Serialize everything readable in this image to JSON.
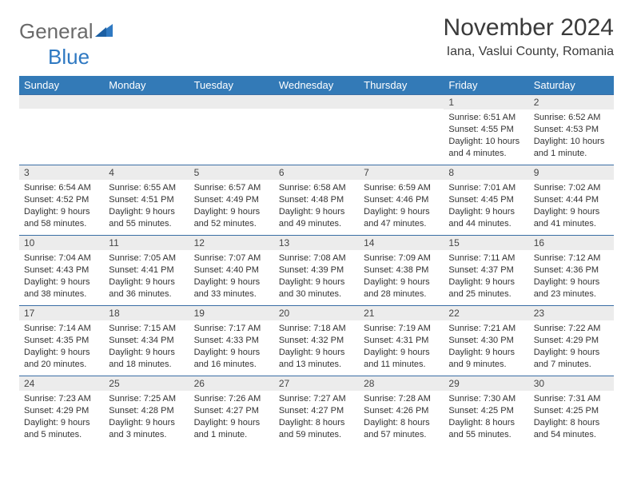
{
  "logo": {
    "text1": "General",
    "text2": "Blue"
  },
  "title": "November 2024",
  "location": "Iana, Vaslui County, Romania",
  "colors": {
    "header_bg": "#337ab7",
    "header_text": "#ffffff",
    "daynum_bg": "#ececec",
    "border": "#3a6ea5",
    "logo_accent": "#2f79c2"
  },
  "weekdays": [
    "Sunday",
    "Monday",
    "Tuesday",
    "Wednesday",
    "Thursday",
    "Friday",
    "Saturday"
  ],
  "weeks": [
    [
      null,
      null,
      null,
      null,
      null,
      {
        "n": "1",
        "sunrise": "6:51 AM",
        "sunset": "4:55 PM",
        "daylight": "10 hours and 4 minutes."
      },
      {
        "n": "2",
        "sunrise": "6:52 AM",
        "sunset": "4:53 PM",
        "daylight": "10 hours and 1 minute."
      }
    ],
    [
      {
        "n": "3",
        "sunrise": "6:54 AM",
        "sunset": "4:52 PM",
        "daylight": "9 hours and 58 minutes."
      },
      {
        "n": "4",
        "sunrise": "6:55 AM",
        "sunset": "4:51 PM",
        "daylight": "9 hours and 55 minutes."
      },
      {
        "n": "5",
        "sunrise": "6:57 AM",
        "sunset": "4:49 PM",
        "daylight": "9 hours and 52 minutes."
      },
      {
        "n": "6",
        "sunrise": "6:58 AM",
        "sunset": "4:48 PM",
        "daylight": "9 hours and 49 minutes."
      },
      {
        "n": "7",
        "sunrise": "6:59 AM",
        "sunset": "4:46 PM",
        "daylight": "9 hours and 47 minutes."
      },
      {
        "n": "8",
        "sunrise": "7:01 AM",
        "sunset": "4:45 PM",
        "daylight": "9 hours and 44 minutes."
      },
      {
        "n": "9",
        "sunrise": "7:02 AM",
        "sunset": "4:44 PM",
        "daylight": "9 hours and 41 minutes."
      }
    ],
    [
      {
        "n": "10",
        "sunrise": "7:04 AM",
        "sunset": "4:43 PM",
        "daylight": "9 hours and 38 minutes."
      },
      {
        "n": "11",
        "sunrise": "7:05 AM",
        "sunset": "4:41 PM",
        "daylight": "9 hours and 36 minutes."
      },
      {
        "n": "12",
        "sunrise": "7:07 AM",
        "sunset": "4:40 PM",
        "daylight": "9 hours and 33 minutes."
      },
      {
        "n": "13",
        "sunrise": "7:08 AM",
        "sunset": "4:39 PM",
        "daylight": "9 hours and 30 minutes."
      },
      {
        "n": "14",
        "sunrise": "7:09 AM",
        "sunset": "4:38 PM",
        "daylight": "9 hours and 28 minutes."
      },
      {
        "n": "15",
        "sunrise": "7:11 AM",
        "sunset": "4:37 PM",
        "daylight": "9 hours and 25 minutes."
      },
      {
        "n": "16",
        "sunrise": "7:12 AM",
        "sunset": "4:36 PM",
        "daylight": "9 hours and 23 minutes."
      }
    ],
    [
      {
        "n": "17",
        "sunrise": "7:14 AM",
        "sunset": "4:35 PM",
        "daylight": "9 hours and 20 minutes."
      },
      {
        "n": "18",
        "sunrise": "7:15 AM",
        "sunset": "4:34 PM",
        "daylight": "9 hours and 18 minutes."
      },
      {
        "n": "19",
        "sunrise": "7:17 AM",
        "sunset": "4:33 PM",
        "daylight": "9 hours and 16 minutes."
      },
      {
        "n": "20",
        "sunrise": "7:18 AM",
        "sunset": "4:32 PM",
        "daylight": "9 hours and 13 minutes."
      },
      {
        "n": "21",
        "sunrise": "7:19 AM",
        "sunset": "4:31 PM",
        "daylight": "9 hours and 11 minutes."
      },
      {
        "n": "22",
        "sunrise": "7:21 AM",
        "sunset": "4:30 PM",
        "daylight": "9 hours and 9 minutes."
      },
      {
        "n": "23",
        "sunrise": "7:22 AM",
        "sunset": "4:29 PM",
        "daylight": "9 hours and 7 minutes."
      }
    ],
    [
      {
        "n": "24",
        "sunrise": "7:23 AM",
        "sunset": "4:29 PM",
        "daylight": "9 hours and 5 minutes."
      },
      {
        "n": "25",
        "sunrise": "7:25 AM",
        "sunset": "4:28 PM",
        "daylight": "9 hours and 3 minutes."
      },
      {
        "n": "26",
        "sunrise": "7:26 AM",
        "sunset": "4:27 PM",
        "daylight": "9 hours and 1 minute."
      },
      {
        "n": "27",
        "sunrise": "7:27 AM",
        "sunset": "4:27 PM",
        "daylight": "8 hours and 59 minutes."
      },
      {
        "n": "28",
        "sunrise": "7:28 AM",
        "sunset": "4:26 PM",
        "daylight": "8 hours and 57 minutes."
      },
      {
        "n": "29",
        "sunrise": "7:30 AM",
        "sunset": "4:25 PM",
        "daylight": "8 hours and 55 minutes."
      },
      {
        "n": "30",
        "sunrise": "7:31 AM",
        "sunset": "4:25 PM",
        "daylight": "8 hours and 54 minutes."
      }
    ]
  ],
  "labels": {
    "sunrise": "Sunrise: ",
    "sunset": "Sunset: ",
    "daylight": "Daylight: "
  }
}
